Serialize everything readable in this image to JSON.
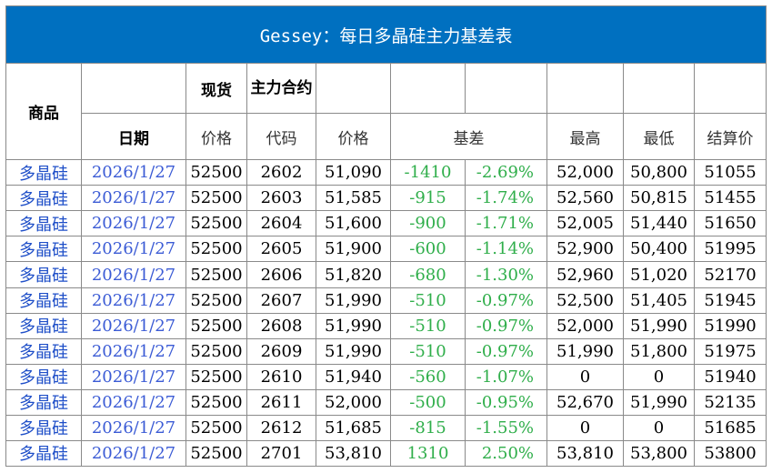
{
  "title": "Gessey：每日多晶硅主力基差表",
  "headers": {
    "product": "商品",
    "date": "日期",
    "spot": "现货",
    "spot_price": "价格",
    "main_contract": "主力合约",
    "contract_code": "代码",
    "price": "价格",
    "basis": "基差",
    "high": "最高",
    "low": "最低",
    "settle": "结算价"
  },
  "rows": [
    {
      "product": "多晶硅",
      "date": "2026/1/27",
      "spot": "52500",
      "code": "2602",
      "price": "51,090",
      "basis": "-1410",
      "pct": "-2.69%",
      "high": "52,000",
      "low": "50,800",
      "settle": "51055"
    },
    {
      "product": "多晶硅",
      "date": "2026/1/27",
      "spot": "52500",
      "code": "2603",
      "price": "51,585",
      "basis": "-915",
      "pct": "-1.74%",
      "high": "52,560",
      "low": "50,815",
      "settle": "51455"
    },
    {
      "product": "多晶硅",
      "date": "2026/1/27",
      "spot": "52500",
      "code": "2604",
      "price": "51,600",
      "basis": "-900",
      "pct": "-1.71%",
      "high": "52,005",
      "low": "51,440",
      "settle": "51650"
    },
    {
      "product": "多晶硅",
      "date": "2026/1/27",
      "spot": "52500",
      "code": "2605",
      "price": "51,900",
      "basis": "-600",
      "pct": "-1.14%",
      "high": "52,900",
      "low": "50,400",
      "settle": "51995"
    },
    {
      "product": "多晶硅",
      "date": "2026/1/27",
      "spot": "52500",
      "code": "2606",
      "price": "51,820",
      "basis": "-680",
      "pct": "-1.30%",
      "high": "52,960",
      "low": "51,020",
      "settle": "52170"
    },
    {
      "product": "多晶硅",
      "date": "2026/1/27",
      "spot": "52500",
      "code": "2607",
      "price": "51,990",
      "basis": "-510",
      "pct": "-0.97%",
      "high": "52,500",
      "low": "51,405",
      "settle": "51945"
    },
    {
      "product": "多晶硅",
      "date": "2026/1/27",
      "spot": "52500",
      "code": "2608",
      "price": "51,990",
      "basis": "-510",
      "pct": "-0.97%",
      "high": "52,000",
      "low": "51,990",
      "settle": "51990"
    },
    {
      "product": "多晶硅",
      "date": "2026/1/27",
      "spot": "52500",
      "code": "2609",
      "price": "51,990",
      "basis": "-510",
      "pct": "-0.97%",
      "high": "51,990",
      "low": "51,800",
      "settle": "51975"
    },
    {
      "product": "多晶硅",
      "date": "2026/1/27",
      "spot": "52500",
      "code": "2610",
      "price": "51,940",
      "basis": "-560",
      "pct": "-1.07%",
      "high": "0",
      "low": "0",
      "settle": "51940"
    },
    {
      "product": "多晶硅",
      "date": "2026/1/27",
      "spot": "52500",
      "code": "2611",
      "price": "52,000",
      "basis": "-500",
      "pct": "-0.95%",
      "high": "52,670",
      "low": "51,990",
      "settle": "52135"
    },
    {
      "product": "多晶硅",
      "date": "2026/1/27",
      "spot": "52500",
      "code": "2612",
      "price": "51,685",
      "basis": "-815",
      "pct": "-1.55%",
      "high": "0",
      "low": "0",
      "settle": "51685"
    },
    {
      "product": "多晶硅",
      "date": "2026/1/27",
      "spot": "52500",
      "code": "2701",
      "price": "53,810",
      "basis": "1310",
      "pct": "2.50%",
      "high": "53,810",
      "low": "53,800",
      "settle": "53800"
    }
  ],
  "colors": {
    "title_bg": "#0070c0",
    "title_fg": "#ffffff",
    "basis": "#2fae4a",
    "product": "#1f4fc8",
    "date": "#3b5bd5"
  }
}
